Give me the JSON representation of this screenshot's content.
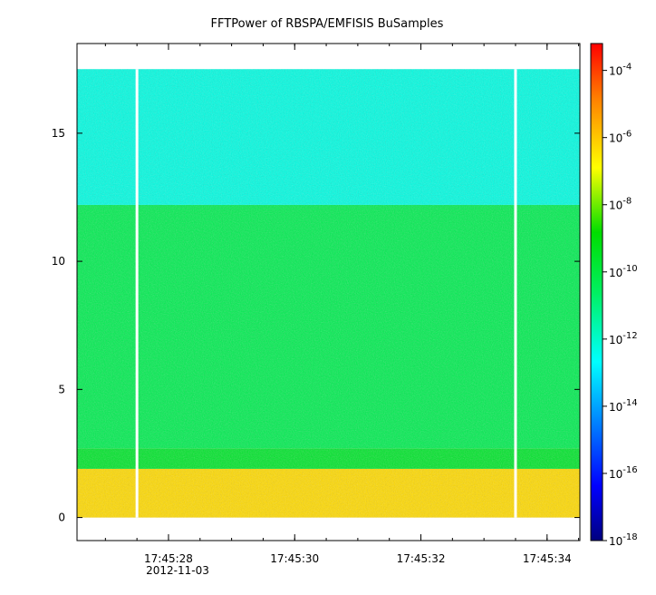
{
  "chart_data": {
    "type": "heatmap",
    "title": "FFTPower of RBSPA/EMFISIS  BuSamples",
    "xlabel": "",
    "ylabel": "",
    "x_date_label": "2012-11-03",
    "x_ticks": [
      {
        "label": "17:45:28",
        "t": 28
      },
      {
        "label": "17:45:30",
        "t": 30
      },
      {
        "label": "17:45:32",
        "t": 32
      },
      {
        "label": "17:45:34",
        "t": 34
      }
    ],
    "x_minor_ticks": [
      27,
      27.5,
      28,
      28.5,
      29,
      29.5,
      30,
      30.5,
      31,
      31.5,
      32,
      32.5,
      33,
      33.5,
      34,
      34.5
    ],
    "xlim": [
      26.55,
      34.52
    ],
    "ylim": [
      -0.9,
      18.5
    ],
    "y_ticks": [
      0,
      5,
      10,
      15
    ],
    "y_ticks_labels": [
      "0",
      "5",
      "10",
      "15"
    ],
    "data_ymax": 17.5,
    "gaps_x": [
      27.5,
      33.5
    ],
    "bands": [
      {
        "y_range": [
          0,
          1.9
        ],
        "log10_power": -6.3
      },
      {
        "y_range": [
          1.9,
          2.7
        ],
        "log10_power": -9.6
      },
      {
        "y_range": [
          2.7,
          12.2
        ],
        "log10_power": -10.3
      },
      {
        "y_range": [
          12.2,
          17.5
        ],
        "log10_power": -12.3
      }
    ],
    "colorbar": {
      "scale": "log",
      "range_log10": [
        -18,
        -3.2
      ],
      "ticks": [
        {
          "base": "10",
          "exp": "-4"
        },
        {
          "base": "10",
          "exp": "-6"
        },
        {
          "base": "10",
          "exp": "-8"
        },
        {
          "base": "10",
          "exp": "-10"
        },
        {
          "base": "10",
          "exp": "-12"
        },
        {
          "base": "10",
          "exp": "-14"
        },
        {
          "base": "10",
          "exp": "-16"
        },
        {
          "base": "10",
          "exp": "-18"
        }
      ]
    }
  }
}
